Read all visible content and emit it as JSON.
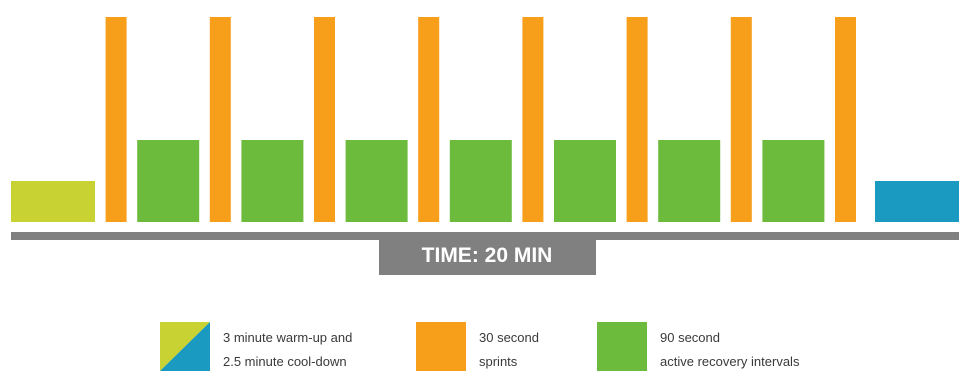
{
  "chart_data": {
    "type": "bar",
    "title": "",
    "xlabel": "TIME: 20 MIN",
    "ylabel": "",
    "x_unit": "seconds",
    "segments": [
      {
        "kind": "warmup",
        "duration": 180,
        "intensity": 1
      },
      {
        "kind": "sprint",
        "duration": 30,
        "intensity": 5
      },
      {
        "kind": "recovery",
        "duration": 90,
        "intensity": 2
      },
      {
        "kind": "sprint",
        "duration": 30,
        "intensity": 5
      },
      {
        "kind": "recovery",
        "duration": 90,
        "intensity": 2
      },
      {
        "kind": "sprint",
        "duration": 30,
        "intensity": 5
      },
      {
        "kind": "recovery",
        "duration": 90,
        "intensity": 2
      },
      {
        "kind": "sprint",
        "duration": 30,
        "intensity": 5
      },
      {
        "kind": "recovery",
        "duration": 90,
        "intensity": 2
      },
      {
        "kind": "sprint",
        "duration": 30,
        "intensity": 5
      },
      {
        "kind": "recovery",
        "duration": 90,
        "intensity": 2
      },
      {
        "kind": "sprint",
        "duration": 30,
        "intensity": 5
      },
      {
        "kind": "recovery",
        "duration": 90,
        "intensity": 2
      },
      {
        "kind": "sprint",
        "duration": 30,
        "intensity": 5
      },
      {
        "kind": "recovery",
        "duration": 90,
        "intensity": 2
      },
      {
        "kind": "sprint",
        "duration": 30,
        "intensity": 5
      },
      {
        "kind": "cooldown",
        "duration": 150,
        "intensity": 1
      }
    ],
    "colors": {
      "warmup": "#c8d232",
      "sprint": "#f79e1b",
      "recovery": "#6cbb3c",
      "cooldown": "#1a9ac0",
      "axis": "#808080",
      "axis_label_text": "#ffffff"
    },
    "legend": [
      {
        "swatch": "warmup-cooldown",
        "lines": [
          "3 minute warm-up and",
          "2.5 minute cool-down"
        ]
      },
      {
        "swatch": "sprint",
        "lines": [
          "30 second",
          "sprints"
        ]
      },
      {
        "swatch": "recovery",
        "lines": [
          "90 second",
          "active recovery intervals"
        ]
      }
    ],
    "legend_placement": "bottom",
    "grid": false
  }
}
